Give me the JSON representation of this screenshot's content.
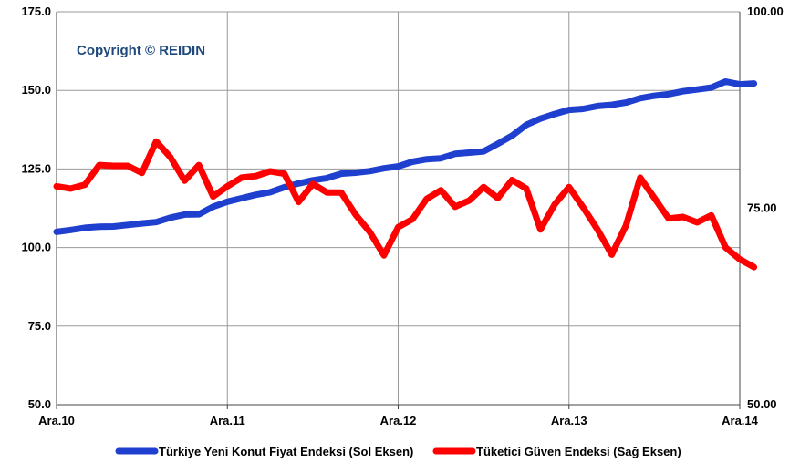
{
  "watermark": "Copyright © REIDIN",
  "chart_data": {
    "type": "line",
    "title": "",
    "xlabel": "",
    "ylabel": "",
    "x_ticks": [
      "Ara.10",
      "Ara.11",
      "Ara.12",
      "Ara.13",
      "Ara.14"
    ],
    "ylim_left": [
      50,
      175
    ],
    "yticks_left": [
      "50.0",
      "75.0",
      "100.0",
      "125.0",
      "150.0",
      "175.0"
    ],
    "ylim_right": [
      50,
      100
    ],
    "yticks_right": [
      "50.00",
      "75.00",
      "100.00"
    ],
    "grid": true,
    "legend_position": "bottom",
    "series": [
      {
        "name": "Türkiye Yeni Konut Fiyat Endeksi (Sol Eksen)",
        "axis": "left",
        "color": "#1f3fcf",
        "values": [
          105.0,
          105.6,
          106.3,
          106.6,
          106.7,
          107.2,
          107.7,
          108.1,
          109.5,
          110.5,
          110.6,
          113.0,
          114.6,
          115.7,
          116.8,
          117.6,
          119.2,
          120.4,
          121.4,
          122.1,
          123.5,
          123.8,
          124.3,
          125.2,
          125.8,
          127.3,
          128.1,
          128.4,
          129.8,
          130.2,
          130.6,
          133.0,
          135.6,
          139.0,
          141.0,
          142.5,
          143.8,
          144.1,
          145.0,
          145.4,
          146.1,
          147.5,
          148.3,
          148.8,
          149.7,
          150.3,
          150.9,
          152.8,
          151.9,
          152.2
        ]
      },
      {
        "name": "Tüketici Güven Endeksi (Sağ Eksen)",
        "axis": "right",
        "color": "#ff0000",
        "values": [
          77.8,
          77.5,
          78.0,
          80.5,
          80.4,
          80.4,
          79.5,
          83.5,
          81.5,
          78.5,
          80.5,
          76.5,
          77.8,
          78.9,
          79.1,
          79.7,
          79.4,
          75.8,
          78.1,
          77.0,
          77.0,
          74.2,
          72.0,
          69.0,
          72.6,
          73.6,
          76.2,
          77.3,
          75.2,
          76.0,
          77.7,
          76.3,
          78.6,
          77.5,
          72.3,
          75.5,
          77.7,
          75.1,
          72.3,
          69.1,
          72.8,
          78.9,
          76.3,
          73.7,
          73.9,
          73.2,
          74.1,
          70.0,
          68.5,
          67.5
        ]
      }
    ]
  }
}
